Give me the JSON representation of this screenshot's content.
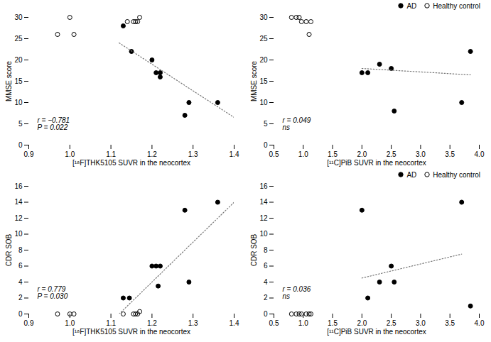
{
  "chart_data": [
    {
      "type": "scatter",
      "xlabel": "[¹⁸F]THK5105 SUVR in the neocortex",
      "ylabel": "MMSE score",
      "xlim": [
        0.9,
        1.4
      ],
      "ylim": [
        0,
        30
      ],
      "xticks": [
        0.9,
        {
          "value": 1.0,
          "label": "1.0"
        },
        1.1,
        1.2,
        1.3,
        1.4
      ],
      "yticks": [
        0,
        5,
        10,
        15,
        20,
        25,
        30
      ],
      "annotation": "r = −0.781\nP = 0.022",
      "series": [
        {
          "name": "AD",
          "color": "#000000",
          "marker": "circle",
          "x": [
            1.13,
            1.15,
            1.2,
            1.21,
            1.22,
            1.22,
            1.28,
            1.29,
            1.36
          ],
          "values": [
            28,
            22,
            20,
            17,
            17,
            16,
            7,
            10,
            10
          ]
        },
        {
          "name": "Healthy control",
          "color": "#000000",
          "marker": "open_circle",
          "x": [
            0.97,
            1.0,
            1.01,
            1.14,
            1.155,
            1.16,
            1.165,
            1.17
          ],
          "values": [
            26,
            30,
            26,
            29,
            29,
            29,
            29,
            30
          ]
        },
        {
          "type": "line",
          "line_style": "dotted",
          "color": "#777777",
          "x": [
            1.12,
            1.4
          ],
          "values": [
            24.0,
            6.5
          ]
        }
      ]
    },
    {
      "type": "scatter",
      "xlabel": "[¹¹C]PiB SUVR in the neocortex",
      "ylabel": "MMSE score",
      "xlim": [
        0.5,
        4.0
      ],
      "ylim": [
        0,
        30
      ],
      "xticks": [
        0.5,
        {
          "value": 1.0,
          "label": "1.0"
        },
        1.5,
        {
          "value": 2.0,
          "label": "2.0"
        },
        2.5,
        {
          "value": 3.0,
          "label": "3.0"
        },
        3.5,
        {
          "value": 4.0,
          "label": "4.0"
        }
      ],
      "yticks": [
        0,
        5,
        10,
        15,
        20,
        25,
        30
      ],
      "annotation": "r = 0.049\nns",
      "legend": "right",
      "series": [
        {
          "name": "AD",
          "color": "#000000",
          "marker": "circle",
          "x": [
            2.0,
            2.1,
            2.3,
            2.5,
            2.55,
            3.7,
            3.85
          ],
          "values": [
            17,
            17,
            19,
            18,
            8,
            10,
            22
          ]
        },
        {
          "name": "Healthy control",
          "color": "#000000",
          "marker": "open_circle",
          "x": [
            0.8,
            0.88,
            0.93,
            0.97,
            1.05,
            1.1,
            1.13
          ],
          "values": [
            30,
            30,
            30,
            29,
            29,
            26,
            29
          ]
        },
        {
          "type": "line",
          "line_style": "dotted",
          "color": "#777777",
          "x": [
            2.0,
            3.85
          ],
          "values": [
            18.0,
            16.5
          ]
        }
      ]
    },
    {
      "type": "scatter",
      "xlabel": "[¹⁸F]THK5105 SUVR in the neocortex",
      "ylabel": "CDR SOB",
      "xlim": [
        0.9,
        1.4
      ],
      "ylim": [
        0,
        16
      ],
      "xticks": [
        0.9,
        {
          "value": 1.0,
          "label": "1.0"
        },
        1.1,
        1.2,
        1.3,
        1.4
      ],
      "yticks": [
        0,
        2,
        4,
        6,
        8,
        10,
        12,
        14,
        16
      ],
      "annotation": "r = 0.779\nP = 0.030",
      "series": [
        {
          "name": "AD",
          "color": "#000000",
          "marker": "circle",
          "x": [
            1.13,
            1.145,
            1.2,
            1.21,
            1.215,
            1.22,
            1.28,
            1.29,
            1.36
          ],
          "values": [
            2,
            2,
            6,
            6,
            3.5,
            6,
            13,
            4,
            14
          ]
        },
        {
          "name": "Healthy control",
          "color": "#000000",
          "marker": "open_circle",
          "x": [
            0.97,
            1.0,
            1.01,
            1.13,
            1.155,
            1.16,
            1.165,
            1.17
          ],
          "values": [
            0,
            0,
            0,
            0,
            0,
            0,
            0,
            0.3
          ]
        },
        {
          "type": "line",
          "line_style": "dotted",
          "color": "#777777",
          "x": [
            1.12,
            1.4
          ],
          "values": [
            0.0,
            14.0
          ]
        }
      ]
    },
    {
      "type": "scatter",
      "xlabel": "[¹¹C]PiB SUVR in the neocortex",
      "ylabel": "CDR SOB",
      "xlim": [
        0.5,
        4.0
      ],
      "ylim": [
        0,
        16
      ],
      "xticks": [
        0.5,
        {
          "value": 1.0,
          "label": "1.0"
        },
        1.5,
        {
          "value": 2.0,
          "label": "2.0"
        },
        2.5,
        {
          "value": 3.0,
          "label": "3.0"
        },
        3.5,
        {
          "value": 4.0,
          "label": "4.0"
        }
      ],
      "yticks": [
        0,
        2,
        4,
        6,
        8,
        10,
        12,
        14,
        16
      ],
      "annotation": "r = 0.036\nns",
      "legend": "right",
      "series": [
        {
          "name": "AD",
          "color": "#000000",
          "marker": "circle",
          "x": [
            2.0,
            2.1,
            2.3,
            2.5,
            2.55,
            3.7,
            3.85
          ],
          "values": [
            13,
            2,
            4,
            6,
            4,
            14,
            1
          ]
        },
        {
          "name": "Healthy control",
          "color": "#000000",
          "marker": "open_circle",
          "x": [
            0.8,
            0.88,
            0.93,
            0.97,
            1.05,
            1.1,
            1.13
          ],
          "values": [
            0,
            0,
            0,
            0,
            0,
            0,
            0
          ]
        },
        {
          "type": "line",
          "line_style": "dotted",
          "color": "#777777",
          "x": [
            2.0,
            3.7
          ],
          "values": [
            4.5,
            7.5
          ]
        }
      ]
    }
  ]
}
